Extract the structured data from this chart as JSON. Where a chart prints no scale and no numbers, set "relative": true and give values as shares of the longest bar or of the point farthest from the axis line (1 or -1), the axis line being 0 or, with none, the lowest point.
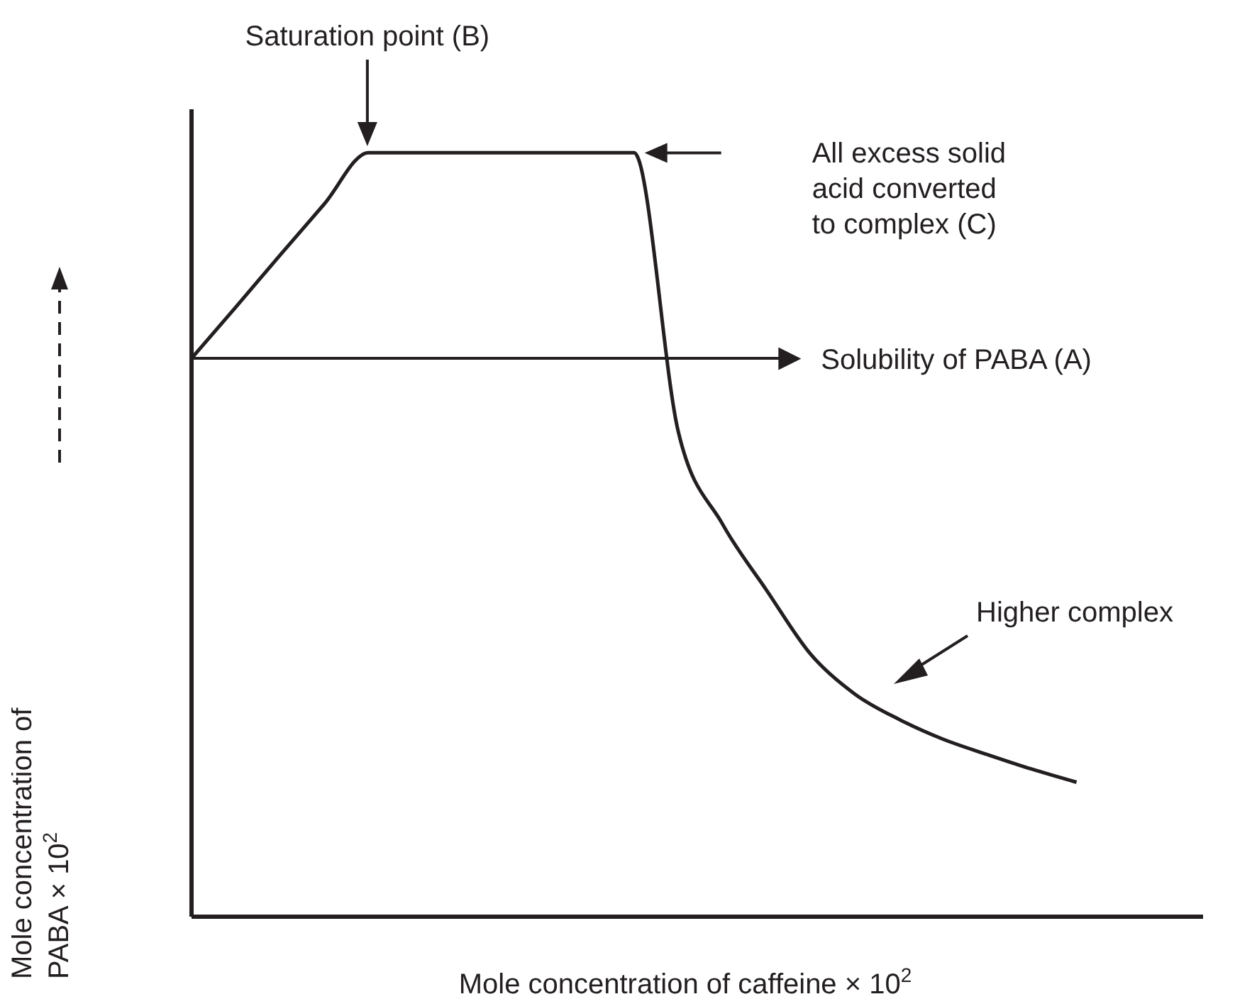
{
  "chart_data": {
    "type": "line",
    "relative": true,
    "xlabel": "Mole concentration of caffeine × 10$^{2}$",
    "ylabel": "Mole concentration of PABA × 10$^{2}$",
    "categories": [
      null,
      null,
      null,
      null,
      null,
      null,
      null,
      null,
      null,
      null,
      null,
      null,
      null,
      null,
      null,
      null,
      null,
      null,
      null,
      null,
      null
    ],
    "series": [
      {
        "color": "#231f20",
        "values": [
          0.731,
          0.798,
          0.866,
          0.933,
          1,
          1,
          1,
          1,
          1,
          1,
          1,
          0.635,
          0.514,
          0.427,
          0.343,
          0.291,
          0.258,
          0.232,
          0.212,
          0.193,
          0.176
        ]
      }
    ],
    "ref_lines": [
      {
        "axis": "y",
        "value": 0.731,
        "label": "Solubility of PABA (A)"
      }
    ],
    "annotations": [
      "Saturation point (B)",
      "All excess solid acid converted to complex (C)",
      "Higher complex"
    ],
    "grid": false,
    "legend": false,
    "marker": "none",
    "line_style": "solid"
  }
}
